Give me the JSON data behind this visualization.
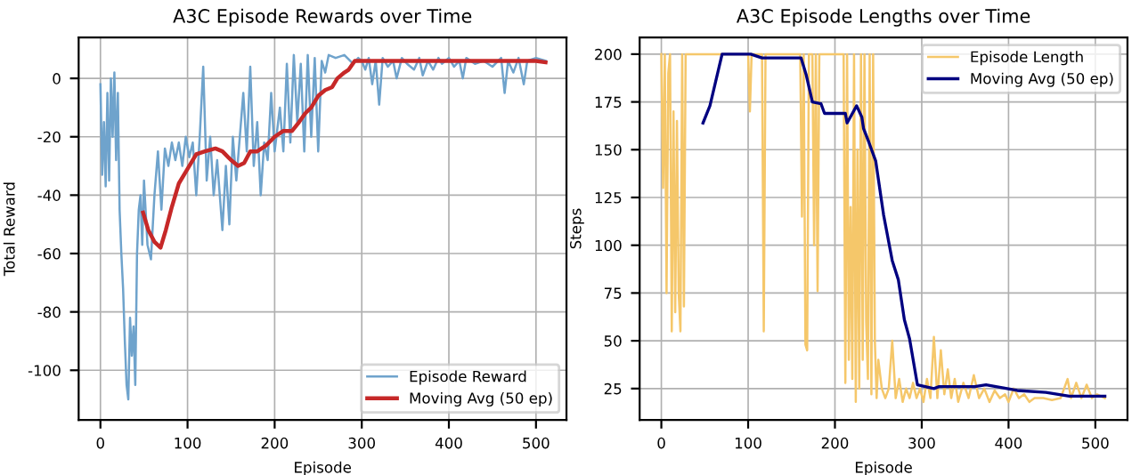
{
  "chart_data": [
    {
      "type": "line",
      "title": "A3C Episode Rewards over Time",
      "xlabel": "Episode",
      "ylabel": "Total Reward",
      "xlim": [
        -25,
        535
      ],
      "ylim": [
        -117,
        14
      ],
      "xticks": [
        0,
        100,
        200,
        300,
        400,
        500
      ],
      "yticks": [
        -100,
        -80,
        -60,
        -40,
        -20,
        0
      ],
      "grid": true,
      "legend": "bottom right",
      "series": [
        {
          "name": "Episode Reward",
          "color": "#6fa3cc",
          "x": [
            0,
            2,
            4,
            6,
            8,
            10,
            12,
            14,
            16,
            18,
            20,
            22,
            24,
            26,
            28,
            30,
            32,
            34,
            36,
            38,
            40,
            42,
            44,
            46,
            48,
            50,
            54,
            58,
            62,
            66,
            70,
            74,
            78,
            82,
            86,
            90,
            94,
            98,
            102,
            106,
            110,
            114,
            118,
            122,
            126,
            130,
            134,
            140,
            144,
            148,
            152,
            156,
            160,
            164,
            168,
            172,
            176,
            180,
            184,
            188,
            192,
            196,
            200,
            206,
            210,
            214,
            218,
            222,
            226,
            230,
            234,
            238,
            242,
            246,
            250,
            254,
            258,
            262,
            270,
            280,
            290,
            296,
            300,
            304,
            308,
            312,
            316,
            320,
            324,
            330,
            336,
            340,
            346,
            352,
            360,
            366,
            370,
            376,
            382,
            388,
            392,
            400,
            406,
            412,
            416,
            420,
            430,
            440,
            450,
            460,
            464,
            468,
            474,
            480,
            486,
            490,
            500,
            511
          ],
          "values": [
            -2,
            -33,
            -15,
            -37,
            -5,
            -35,
            0,
            -20,
            2,
            -28,
            -5,
            -45,
            -60,
            -72,
            -90,
            -105,
            -110,
            -82,
            -95,
            -85,
            -105,
            -60,
            -45,
            -40,
            -57,
            -35,
            -57,
            -62,
            -40,
            -25,
            -45,
            -24,
            -30,
            -22,
            -28,
            -22,
            -30,
            -20,
            -27,
            -22,
            -40,
            -20,
            4,
            -35,
            -20,
            -40,
            -28,
            -52,
            -30,
            -50,
            -20,
            -35,
            -20,
            -5,
            -25,
            4,
            -30,
            -15,
            -40,
            -22,
            -28,
            -5,
            -25,
            -10,
            -25,
            5,
            -22,
            8,
            -15,
            5,
            -25,
            8,
            -20,
            7,
            -25,
            6,
            2,
            8,
            7,
            8,
            5,
            7,
            6,
            3,
            7,
            -2,
            6,
            -9,
            7,
            4,
            6,
            0,
            7,
            5,
            3,
            7,
            1,
            6,
            3,
            7,
            5,
            7,
            4,
            6,
            0,
            7,
            5,
            6,
            4,
            7,
            -5,
            6,
            2,
            7,
            -2,
            6,
            7,
            6
          ]
        },
        {
          "name": "Moving Avg (50 ep)",
          "color": "#c62828",
          "x": [
            49,
            55,
            62,
            69,
            75,
            82,
            90,
            100,
            110,
            120,
            132,
            140,
            150,
            158,
            165,
            172,
            180,
            190,
            200,
            210,
            220,
            228,
            235,
            242,
            250,
            258,
            266,
            272,
            280,
            285,
            292,
            300,
            320,
            350,
            380,
            400,
            420,
            450,
            480,
            500,
            511
          ],
          "values": [
            -46,
            -52,
            -56,
            -58,
            -52,
            -44,
            -36,
            -31,
            -26,
            -25,
            -24,
            -25,
            -28,
            -30,
            -29,
            -25,
            -25,
            -23,
            -20,
            -18,
            -18,
            -15,
            -12,
            -10,
            -6,
            -4,
            -3,
            0,
            2,
            3,
            6,
            6,
            6,
            6,
            6,
            6,
            6,
            6,
            6,
            6,
            5.5
          ]
        }
      ]
    },
    {
      "type": "line",
      "title": "A3C Episode Lengths over Time",
      "xlabel": "Episode",
      "ylabel": "Steps",
      "xlim": [
        -25,
        537
      ],
      "ylim": [
        8.6,
        208.7
      ],
      "xticks": [
        0,
        100,
        200,
        300,
        400,
        500
      ],
      "yticks": [
        25,
        50,
        75,
        100,
        125,
        150,
        175,
        200
      ],
      "grid": true,
      "legend": "top right",
      "series": [
        {
          "name": "Episode Length",
          "color": "#f5c76a",
          "x": [
            0,
            2,
            4,
            6,
            8,
            10,
            12,
            14,
            16,
            18,
            20,
            22,
            24,
            26,
            28,
            30,
            100,
            102,
            104,
            116,
            118,
            120,
            160,
            162,
            164,
            166,
            168,
            170,
            174,
            176,
            178,
            180,
            182,
            186,
            190,
            200,
            210,
            212,
            214,
            216,
            218,
            220,
            222,
            224,
            226,
            228,
            230,
            232,
            234,
            236,
            238,
            240,
            242,
            244,
            246,
            248,
            250,
            254,
            258,
            262,
            266,
            270,
            274,
            278,
            282,
            286,
            290,
            294,
            298,
            302,
            306,
            310,
            314,
            318,
            322,
            326,
            330,
            334,
            338,
            342,
            348,
            354,
            360,
            366,
            372,
            378,
            384,
            390,
            396,
            400,
            406,
            412,
            418,
            424,
            430,
            440,
            450,
            460,
            468,
            472,
            478,
            484,
            490,
            496,
            502,
            511
          ],
          "values": [
            200,
            130,
            200,
            75,
            190,
            200,
            55,
            170,
            65,
            165,
            75,
            55,
            200,
            68,
            200,
            200,
            200,
            170,
            200,
            200,
            55,
            200,
            200,
            115,
            200,
            48,
            45,
            200,
            200,
            100,
            200,
            76,
            200,
            200,
            200,
            200,
            200,
            28,
            200,
            40,
            120,
            30,
            200,
            18,
            150,
            25,
            200,
            40,
            200,
            60,
            30,
            200,
            22,
            200,
            50,
            20,
            40,
            25,
            20,
            25,
            50,
            20,
            30,
            18,
            25,
            20,
            28,
            20,
            25,
            18,
            30,
            20,
            52,
            20,
            45,
            22,
            35,
            20,
            30,
            18,
            28,
            20,
            32,
            20,
            25,
            18,
            24,
            20,
            22,
            18,
            25,
            20,
            22,
            18,
            20,
            20,
            19,
            20,
            30,
            20,
            28,
            20,
            27,
            20,
            22,
            20
          ]
        },
        {
          "name": "Moving Avg (50 ep)",
          "color": "#000080",
          "x": [
            48,
            56,
            70,
            103,
            116,
            161,
            167,
            174,
            184,
            188,
            212,
            214,
            225,
            231,
            233,
            239,
            247,
            256,
            266,
            273,
            280,
            286,
            295,
            314,
            320,
            361,
            374,
            410,
            443,
            470,
            490,
            511
          ],
          "values": [
            164,
            173,
            200,
            200,
            198,
            198,
            189,
            175,
            174,
            169,
            169,
            164,
            173,
            167,
            161,
            154,
            144,
            116,
            92,
            82,
            61,
            51,
            27,
            25,
            26,
            26,
            27,
            24,
            23,
            21,
            21,
            21
          ]
        }
      ]
    }
  ]
}
